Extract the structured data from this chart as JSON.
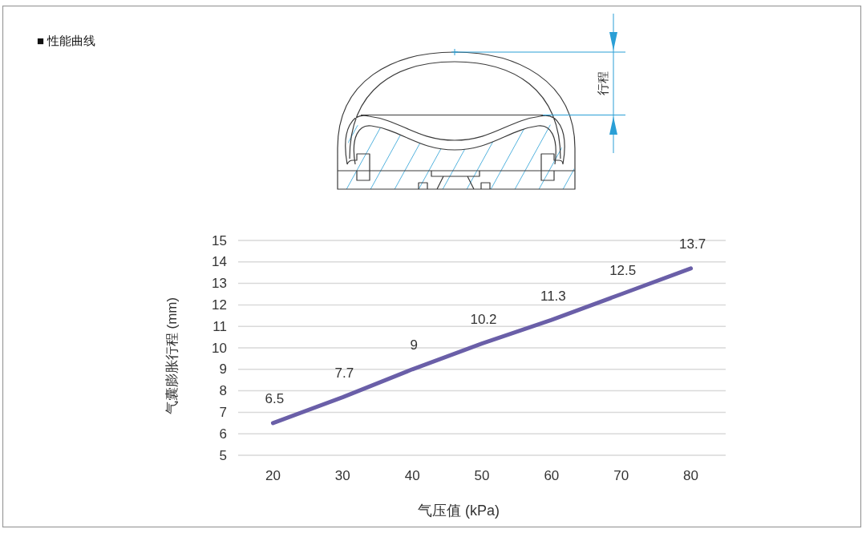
{
  "chart_data": {
    "type": "line",
    "title": "■ 性能曲线",
    "xlabel": "气压值 (kPa)",
    "ylabel": "气囊膨胀行程 (mm)",
    "categories": [
      "20",
      "30",
      "40",
      "50",
      "60",
      "70",
      "80"
    ],
    "series": [
      {
        "color": "#6a5fa8",
        "values": [
          6.5,
          7.7,
          9,
          10.2,
          11.3,
          12.5,
          13.7
        ]
      }
    ],
    "ylim": [
      5,
      15
    ],
    "yticks": [
      5,
      6,
      7,
      8,
      9,
      10,
      11,
      12,
      13,
      14,
      15
    ],
    "grid": "y",
    "data_labels": true,
    "annotations": [
      "行程"
    ]
  }
}
